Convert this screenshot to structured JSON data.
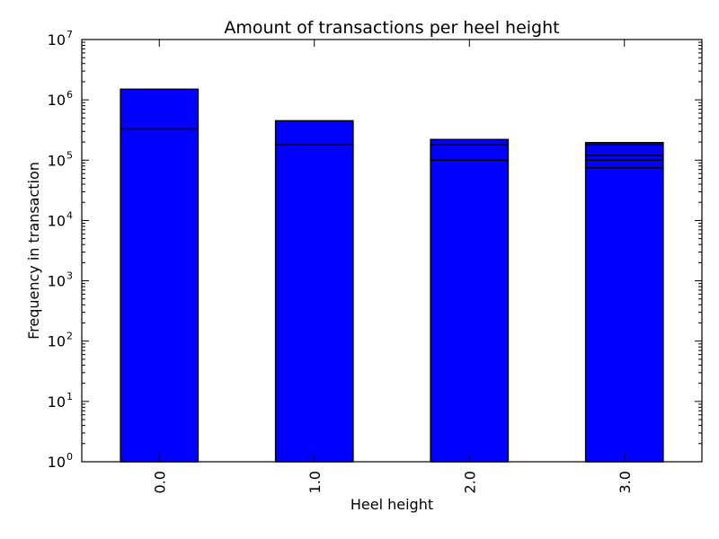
{
  "chart_data": {
    "type": "bar",
    "title": "Amount of transactions per heel height",
    "xlabel": "Heel height",
    "ylabel": "Frequency in transaction",
    "yscale": "log",
    "ylim": [
      1,
      10000000
    ],
    "y_tick_base": "10",
    "y_tick_exponents": [
      "0",
      "1",
      "2",
      "3",
      "4",
      "5",
      "6",
      "7"
    ],
    "categories": [
      "0.0",
      "1.0",
      "2.0",
      "3.0"
    ],
    "stacked_segment_tops": [
      [
        330000,
        1500000
      ],
      [
        180000,
        450000
      ],
      [
        100000,
        180000,
        220000
      ],
      [
        75000,
        100000,
        120000,
        180000,
        195000
      ]
    ],
    "bar_color": "#0000ff",
    "edge_color": "#000000",
    "grid": false,
    "legend": "none"
  }
}
